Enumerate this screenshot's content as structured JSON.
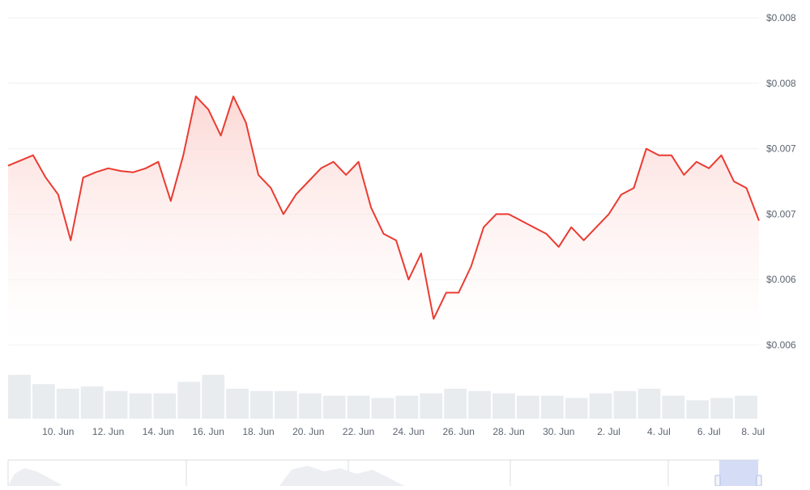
{
  "colors": {
    "line": "#ea3b31",
    "area_top": "#fbd1cd",
    "area_bottom": "#ffffff",
    "grid": "#eef0f3",
    "volume": "#e9ecef",
    "tick_text": "#5c6470",
    "navigator_line": "#d9dde2",
    "navigator_area": "#eceef1",
    "navigator_handle_fill": "#c9d5f3",
    "navigator_handle_stroke": "#aebde8"
  },
  "chart_data": {
    "type": "area",
    "x_axis": {
      "ticks": [
        "10. Jun",
        "12. Jun",
        "14. Jun",
        "16. Jun",
        "18. Jun",
        "20. Jun",
        "22. Jun",
        "24. Jun",
        "26. Jun",
        "28. Jun",
        "30. Jun",
        "2. Jul",
        "4. Jul",
        "6. Jul",
        "8. Jul"
      ],
      "range": [
        "2024-06-08",
        "2024-07-08"
      ]
    },
    "y_axis": {
      "ticks": [
        "$0.008",
        "$0.008",
        "$0.007",
        "$0.007",
        "$0.006",
        "$0.006"
      ],
      "tick_values": [
        0.0085,
        0.008,
        0.0075,
        0.007,
        0.0065,
        0.006
      ],
      "range": [
        0.006,
        0.0085
      ],
      "position": "right"
    },
    "grid": true,
    "legend": "none",
    "series": [
      {
        "x": [
          "2024-06-08",
          "2024-06-09",
          "2024-06-09T12:00",
          "2024-06-10",
          "2024-06-10T12:00",
          "2024-06-11",
          "2024-06-11T12:00",
          "2024-06-12",
          "2024-06-12T12:00",
          "2024-06-13",
          "2024-06-13T12:00",
          "2024-06-14",
          "2024-06-14T12:00",
          "2024-06-15",
          "2024-06-15T12:00",
          "2024-06-16",
          "2024-06-16T12:00",
          "2024-06-17",
          "2024-06-17T12:00",
          "2024-06-18",
          "2024-06-18T12:00",
          "2024-06-19",
          "2024-06-19T12:00",
          "2024-06-20",
          "2024-06-20T12:00",
          "2024-06-21",
          "2024-06-21T12:00",
          "2024-06-22",
          "2024-06-22T12:00",
          "2024-06-23",
          "2024-06-23T12:00",
          "2024-06-24",
          "2024-06-24T12:00",
          "2024-06-25",
          "2024-06-25T12:00",
          "2024-06-26",
          "2024-06-26T12:00",
          "2024-06-27",
          "2024-06-27T12:00",
          "2024-06-28",
          "2024-06-28T12:00",
          "2024-06-29",
          "2024-06-29T12:00",
          "2024-06-30",
          "2024-06-30T12:00",
          "2024-07-01",
          "2024-07-01T12:00",
          "2024-07-02",
          "2024-07-02T12:00",
          "2024-07-03",
          "2024-07-03T12:00",
          "2024-07-04",
          "2024-07-04T12:00",
          "2024-07-05",
          "2024-07-05T12:00",
          "2024-07-06",
          "2024-07-06T12:00",
          "2024-07-07",
          "2024-07-07T12:00",
          "2024-07-08"
        ],
        "values": [
          0.00737,
          0.00745,
          0.00728,
          0.00715,
          0.0068,
          0.00728,
          0.00732,
          0.00735,
          0.00733,
          0.00732,
          0.00735,
          0.0074,
          0.0071,
          0.00745,
          0.0079,
          0.0078,
          0.0076,
          0.0079,
          0.0077,
          0.0073,
          0.0072,
          0.007,
          0.00715,
          0.00725,
          0.00735,
          0.0074,
          0.0073,
          0.0074,
          0.00705,
          0.00685,
          0.0068,
          0.0065,
          0.0067,
          0.0062,
          0.0064,
          0.0064,
          0.0066,
          0.0069,
          0.007,
          0.007,
          0.00695,
          0.0069,
          0.00685,
          0.00675,
          0.0069,
          0.0068,
          0.0069,
          0.007,
          0.00715,
          0.0072,
          0.0075,
          0.00745,
          0.00745,
          0.0073,
          0.0074,
          0.00735,
          0.00745,
          0.00725,
          0.0072,
          0.00695
        ]
      }
    ],
    "volume": {
      "x": [
        "2024-06-08",
        "2024-06-09",
        "2024-06-10",
        "2024-06-11",
        "2024-06-12",
        "2024-06-13",
        "2024-06-14",
        "2024-06-15",
        "2024-06-16",
        "2024-06-17",
        "2024-06-18",
        "2024-06-19",
        "2024-06-20",
        "2024-06-21",
        "2024-06-22",
        "2024-06-23",
        "2024-06-24",
        "2024-06-25",
        "2024-06-26",
        "2024-06-27",
        "2024-06-28",
        "2024-06-29",
        "2024-06-30",
        "2024-07-01",
        "2024-07-02",
        "2024-07-03",
        "2024-07-04",
        "2024-07-05",
        "2024-07-06",
        "2024-07-07",
        "2024-07-08"
      ],
      "values": [
        0.95,
        0.75,
        0.65,
        0.7,
        0.6,
        0.55,
        0.55,
        0.8,
        0.95,
        0.65,
        0.6,
        0.6,
        0.55,
        0.5,
        0.5,
        0.45,
        0.5,
        0.55,
        0.65,
        0.6,
        0.55,
        0.5,
        0.5,
        0.45,
        0.55,
        0.6,
        0.65,
        0.5,
        0.4,
        0.45,
        0.5
      ]
    }
  }
}
